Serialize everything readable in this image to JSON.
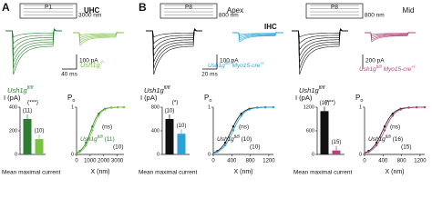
{
  "panels": [
    {
      "letter": "A",
      "cell": "UHC",
      "columns": [
        {
          "stimulus": {
            "position": "P1",
            "displacement": "3000 nm"
          },
          "scale": {
            "time": "40 ms",
            "current": "100 pA"
          },
          "genotypes": [
            {
              "gene": "Ush1g",
              "allele": "fl/fl",
              "color": "#2e7d32"
            },
            {
              "gene": "Ush1g",
              "allele": "-/-",
              "color": "#7cc242"
            }
          ],
          "current": {
            "ylabel": "I (pA)",
            "ylim": [
              0,
              400
            ],
            "yticks": [
              0,
              200,
              400
            ],
            "values": [
              300,
              130
            ],
            "n": [
              "(11)",
              "(10)"
            ],
            "significance": "(***)",
            "xlabel": "Mean maximal current"
          },
          "po": {
            "ylabel": "P",
            "ylabel_sub": "o",
            "xlabel": "X (nm)",
            "xlim": [
              0,
              3500
            ],
            "xticks": [
              0,
              1000,
              2000,
              3000
            ],
            "ylim": [
              0,
              1
            ],
            "yticks": [
              0,
              1
            ],
            "significance": "(ns)",
            "n": [
              "(11)",
              "(10)"
            ]
          }
        }
      ]
    },
    {
      "letter": "B",
      "cell": "IHC",
      "columns": [
        {
          "region": "Apex",
          "stimulus": {
            "position": "P8",
            "displacement": "800 nm"
          },
          "scale": {
            "time": "20 ms",
            "current": "100 pA"
          },
          "genotypes": [
            {
              "gene": "Ush1g",
              "allele": "fl/fl",
              "color": "#111111"
            },
            {
              "gene": "Ush1g",
              "allele": "fl/fl",
              "cre": "Myo15-cre",
              "cre_allele": "+/-",
              "color": "#29a3d6"
            }
          ],
          "current": {
            "ylabel": "I (pA)",
            "ylim": [
              0,
              800
            ],
            "yticks": [
              0,
              400,
              800
            ],
            "values": [
              600,
              350
            ],
            "n": [
              "(10)",
              "(10)"
            ],
            "significance": "(*)",
            "xlabel": "Mean maximal current"
          },
          "po": {
            "ylabel": "P",
            "ylabel_sub": "o",
            "xlabel": "X (nm)",
            "xlim": [
              0,
              1300
            ],
            "xticks": [
              0,
              400,
              800,
              1200
            ],
            "ylim": [
              0,
              1
            ],
            "yticks": [
              0,
              1
            ],
            "significance": "(ns)",
            "n": [
              "(10)",
              "(10)"
            ]
          }
        },
        {
          "region": "Mid",
          "stimulus": {
            "position": "P8",
            "displacement": "800 nm"
          },
          "scale": {
            "current": "200 pA"
          },
          "genotypes": [
            {
              "gene": "Ush1g",
              "allele": "fl/fl",
              "color": "#111111"
            },
            {
              "gene": "Ush1g",
              "allele": "fl/fl",
              "cre": "Myo15-cre",
              "cre_allele": "+/-",
              "color": "#b0457a"
            }
          ],
          "current": {
            "ylabel": "I (pA)",
            "ylim": [
              0,
              1200
            ],
            "yticks": [
              0,
              600,
              1200
            ],
            "values": [
              1100,
              100
            ],
            "n": [
              "(16)",
              "(15)"
            ],
            "significance": "(***)",
            "xlabel": "Mean maximal current"
          },
          "po": {
            "ylabel": "P",
            "ylabel_sub": "o",
            "xlabel": "X (nm)",
            "xlim": [
              0,
              1300
            ],
            "xticks": [
              0,
              400,
              800,
              1200
            ],
            "ylim": [
              0,
              1
            ],
            "yticks": [
              0,
              1
            ],
            "significance": "(ns)",
            "n": [
              "(16)",
              "(15)"
            ]
          }
        }
      ]
    }
  ]
}
